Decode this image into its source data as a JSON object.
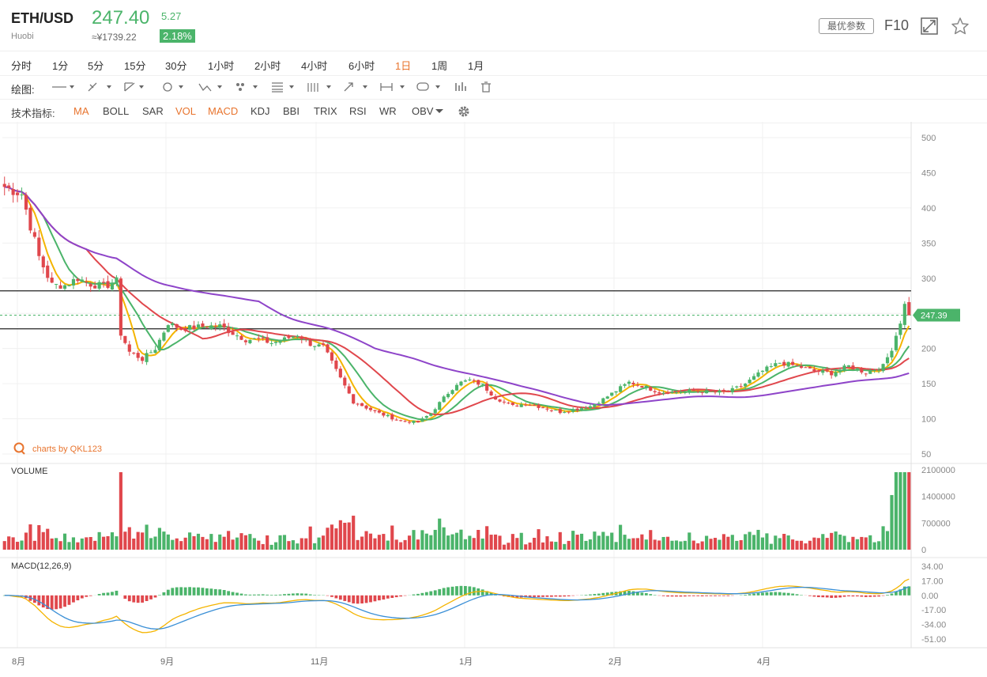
{
  "header": {
    "symbol": "ETH/USD",
    "exchange": "Huobi",
    "price": "247.40",
    "price_cny": "≈¥1739.22",
    "change": "5.27",
    "change_pct": "2.18%",
    "best_params": "最优参数",
    "f10": "F10"
  },
  "timeframes": [
    "分时",
    "1分",
    "5分",
    "15分",
    "30分",
    "1小时",
    "2小时",
    "4小时",
    "6小时",
    "1日",
    "1周",
    "1月"
  ],
  "active_timeframe": "1日",
  "drawing_label": "绘图:",
  "indicator_label": "技术指标:",
  "indicators": [
    "MA",
    "BOLL",
    "SAR",
    "VOL",
    "MACD",
    "KDJ",
    "BBI",
    "TRIX",
    "RSI",
    "WR",
    "OBV"
  ],
  "active_indicators": [
    "MA",
    "VOL",
    "MACD"
  ],
  "colors": {
    "up": "#4bb46a",
    "down": "#e0474c",
    "accent": "#e8742e",
    "ma_fast": "#f4b400",
    "ma_mid": "#4bb46a",
    "ma_slow": "#e0474c",
    "ma_long": "#8e44c9"
  },
  "chart_data": {
    "type": "candlestick",
    "watermark": "charts by QKL123",
    "price_axis": {
      "ticks": [
        500,
        450,
        400,
        350,
        300,
        250,
        200,
        150,
        100,
        50
      ],
      "range": [
        50,
        500
      ]
    },
    "last_price_label": "247.39",
    "last_price": 247.39,
    "horizontal_lines": [
      282,
      228
    ],
    "x_labels": [
      "8月",
      "9月",
      "11月",
      "1月",
      "2月",
      "4月"
    ],
    "close_path": [
      [
        0,
        430
      ],
      [
        4,
        420
      ],
      [
        8,
        330
      ],
      [
        11,
        290
      ],
      [
        14,
        290
      ],
      [
        17,
        300
      ],
      [
        20,
        292
      ],
      [
        23,
        288
      ],
      [
        26,
        296
      ],
      [
        27,
        222
      ],
      [
        29,
        195
      ],
      [
        32,
        185
      ],
      [
        35,
        200
      ],
      [
        38,
        236
      ],
      [
        41,
        228
      ],
      [
        44,
        230
      ],
      [
        47,
        232
      ],
      [
        50,
        232
      ],
      [
        53,
        222
      ],
      [
        56,
        213
      ],
      [
        59,
        213
      ],
      [
        62,
        208
      ],
      [
        65,
        213
      ],
      [
        68,
        220
      ],
      [
        71,
        207
      ],
      [
        74,
        202
      ],
      [
        77,
        168
      ],
      [
        81,
        125
      ],
      [
        86,
        110
      ],
      [
        92,
        97
      ],
      [
        96,
        95
      ],
      [
        99,
        108
      ],
      [
        102,
        130
      ],
      [
        105,
        150
      ],
      [
        108,
        155
      ],
      [
        111,
        148
      ],
      [
        114,
        130
      ],
      [
        118,
        118
      ],
      [
        121,
        122
      ],
      [
        125,
        116
      ],
      [
        129,
        110
      ],
      [
        132,
        113
      ],
      [
        136,
        118
      ],
      [
        139,
        128
      ],
      [
        142,
        140
      ],
      [
        145,
        152
      ],
      [
        148,
        147
      ],
      [
        152,
        138
      ],
      [
        156,
        138
      ],
      [
        160,
        140
      ],
      [
        164,
        138
      ],
      [
        168,
        138
      ],
      [
        172,
        150
      ],
      [
        176,
        168
      ],
      [
        180,
        180
      ],
      [
        184,
        175
      ],
      [
        188,
        168
      ],
      [
        192,
        165
      ],
      [
        196,
        175
      ],
      [
        200,
        166
      ],
      [
        204,
        175
      ],
      [
        206,
        200
      ],
      [
        208,
        238
      ],
      [
        209,
        262
      ],
      [
        210,
        247
      ]
    ],
    "volume": {
      "label": "VOLUME",
      "ticks": [
        2100000,
        1400000,
        700000,
        0
      ]
    },
    "macd": {
      "label": "MACD(12,26,9)",
      "ticks": [
        34.0,
        17.0,
        0.0,
        -17.0,
        -34.0,
        -51.0
      ]
    }
  }
}
